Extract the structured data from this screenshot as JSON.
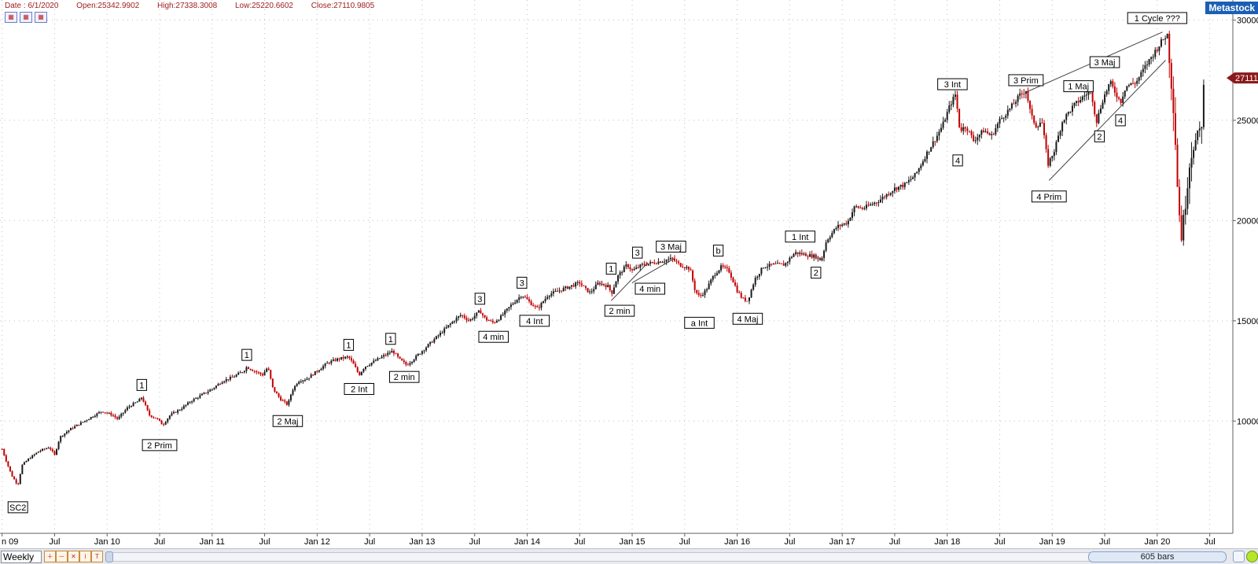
{
  "header": {
    "date": "Date : 6/1/2020",
    "open": "Open:25342.9902",
    "high": "High:27338.3008",
    "low": "Low:25220.6602",
    "close": "Close:27110.9805",
    "brand": "Metastock"
  },
  "toolbar": {
    "period": "Weekly",
    "bars_label": "605 bars",
    "buttons": [
      "zoom-in-icon",
      "zoom-out-icon",
      "cross-icon",
      "info-icon",
      "text-icon"
    ]
  },
  "colors": {
    "up": "#1a1a1a",
    "down": "#c00000",
    "grid": "#c0c0c0",
    "price_flag": "#8b1a1a"
  },
  "chart_data": {
    "type": "candlestick",
    "title": "",
    "xlabel": "",
    "ylabel": "",
    "ylim": [
      4400,
      31000
    ],
    "y_ticks": [
      10000,
      15000,
      20000,
      25000,
      30000
    ],
    "y_tick_labels": [
      "10000",
      "15000",
      "20000",
      "25000",
      "30000"
    ],
    "x_ticks": [
      "n 09",
      "Jul",
      "Jan 10",
      "Jul",
      "Jan 11",
      "Jul",
      "Jan 12",
      "Jul",
      "Jan 13",
      "Jul",
      "Jan 14",
      "Jul",
      "Jan 15",
      "Jul",
      "Jan 16",
      "Jul",
      "Jan 17",
      "Jul",
      "Jan 18",
      "Jul",
      "Jan 19",
      "Jul",
      "Jan 20",
      "Jul"
    ],
    "x_tick_years": [
      2009.0,
      2009.5,
      2010.0,
      2010.5,
      2011.0,
      2011.5,
      2012.0,
      2012.5,
      2013.0,
      2013.5,
      2014.0,
      2014.5,
      2015.0,
      2015.5,
      2016.0,
      2016.5,
      2017.0,
      2017.5,
      2018.0,
      2018.5,
      2019.0,
      2019.5,
      2020.0,
      2020.5
    ],
    "grid": true,
    "last_price_label": "27111",
    "last_price": 27111,
    "series": [
      {
        "values": [
          [
            2009.0,
            8600
          ],
          [
            2009.04,
            8000
          ],
          [
            2009.09,
            7300
          ],
          [
            2009.15,
            6800
          ],
          [
            2009.19,
            7800
          ],
          [
            2009.25,
            8100
          ],
          [
            2009.35,
            8500
          ],
          [
            2009.45,
            8700
          ],
          [
            2009.5,
            8300
          ],
          [
            2009.55,
            9200
          ],
          [
            2009.65,
            9600
          ],
          [
            2009.75,
            9900
          ],
          [
            2009.85,
            10200
          ],
          [
            2009.95,
            10500
          ],
          [
            2010.05,
            10300
          ],
          [
            2010.1,
            10100
          ],
          [
            2010.2,
            10700
          ],
          [
            2010.3,
            11000
          ],
          [
            2010.33,
            11200
          ],
          [
            2010.4,
            10300
          ],
          [
            2010.48,
            10100
          ],
          [
            2010.53,
            9800
          ],
          [
            2010.6,
            10300
          ],
          [
            2010.7,
            10600
          ],
          [
            2010.8,
            11000
          ],
          [
            2010.9,
            11300
          ],
          [
            2011.0,
            11600
          ],
          [
            2011.1,
            12000
          ],
          [
            2011.2,
            12200
          ],
          [
            2011.3,
            12500
          ],
          [
            2011.33,
            12700
          ],
          [
            2011.4,
            12500
          ],
          [
            2011.48,
            12300
          ],
          [
            2011.53,
            12700
          ],
          [
            2011.58,
            11600
          ],
          [
            2011.65,
            11100
          ],
          [
            2011.72,
            10800
          ],
          [
            2011.76,
            11500
          ],
          [
            2011.82,
            12000
          ],
          [
            2011.9,
            12100
          ],
          [
            2012.0,
            12500
          ],
          [
            2012.1,
            12900
          ],
          [
            2012.2,
            13100
          ],
          [
            2012.3,
            13200
          ],
          [
            2012.35,
            12800
          ],
          [
            2012.4,
            12300
          ],
          [
            2012.45,
            12700
          ],
          [
            2012.55,
            13000
          ],
          [
            2012.65,
            13300
          ],
          [
            2012.72,
            13500
          ],
          [
            2012.78,
            13100
          ],
          [
            2012.85,
            12800
          ],
          [
            2012.9,
            13000
          ],
          [
            2013.0,
            13500
          ],
          [
            2013.1,
            14000
          ],
          [
            2013.2,
            14500
          ],
          [
            2013.3,
            15000
          ],
          [
            2013.37,
            15300
          ],
          [
            2013.45,
            15000
          ],
          [
            2013.55,
            15500
          ],
          [
            2013.6,
            15100
          ],
          [
            2013.68,
            14900
          ],
          [
            2013.75,
            15200
          ],
          [
            2013.85,
            15800
          ],
          [
            2013.95,
            16300
          ],
          [
            2014.05,
            15800
          ],
          [
            2014.1,
            15600
          ],
          [
            2014.2,
            16300
          ],
          [
            2014.3,
            16500
          ],
          [
            2014.4,
            16700
          ],
          [
            2014.5,
            16900
          ],
          [
            2014.55,
            16600
          ],
          [
            2014.6,
            16400
          ],
          [
            2014.68,
            16900
          ],
          [
            2014.78,
            16700
          ],
          [
            2014.8,
            16300
          ],
          [
            2014.86,
            17200
          ],
          [
            2014.95,
            17800
          ],
          [
            2015.0,
            17500
          ],
          [
            2015.1,
            17800
          ],
          [
            2015.2,
            17900
          ],
          [
            2015.3,
            18000
          ],
          [
            2015.38,
            18100
          ],
          [
            2015.45,
            17800
          ],
          [
            2015.55,
            17600
          ],
          [
            2015.6,
            16500
          ],
          [
            2015.64,
            16200
          ],
          [
            2015.7,
            16500
          ],
          [
            2015.78,
            17300
          ],
          [
            2015.85,
            17700
          ],
          [
            2015.92,
            17500
          ],
          [
            2016.0,
            16500
          ],
          [
            2016.05,
            16100
          ],
          [
            2016.1,
            16000
          ],
          [
            2016.17,
            17100
          ],
          [
            2016.25,
            17700
          ],
          [
            2016.35,
            17800
          ],
          [
            2016.45,
            17800
          ],
          [
            2016.55,
            18400
          ],
          [
            2016.65,
            18300
          ],
          [
            2016.75,
            18200
          ],
          [
            2016.8,
            18000
          ],
          [
            2016.85,
            19000
          ],
          [
            2016.95,
            19700
          ],
          [
            2017.05,
            19900
          ],
          [
            2017.12,
            20700
          ],
          [
            2017.2,
            20600
          ],
          [
            2017.35,
            21000
          ],
          [
            2017.5,
            21600
          ],
          [
            2017.6,
            21800
          ],
          [
            2017.7,
            22300
          ],
          [
            2017.8,
            23300
          ],
          [
            2017.9,
            24200
          ],
          [
            2017.96,
            24800
          ],
          [
            2018.03,
            25800
          ],
          [
            2018.08,
            26300
          ],
          [
            2018.12,
            24500
          ],
          [
            2018.18,
            24700
          ],
          [
            2018.25,
            24000
          ],
          [
            2018.35,
            24500
          ],
          [
            2018.42,
            24200
          ],
          [
            2018.5,
            25000
          ],
          [
            2018.6,
            25600
          ],
          [
            2018.7,
            26300
          ],
          [
            2018.75,
            26500
          ],
          [
            2018.8,
            25200
          ],
          [
            2018.85,
            24700
          ],
          [
            2018.9,
            25000
          ],
          [
            2018.96,
            22800
          ],
          [
            2019.02,
            23500
          ],
          [
            2019.1,
            25000
          ],
          [
            2019.2,
            25700
          ],
          [
            2019.3,
            26200
          ],
          [
            2019.37,
            26500
          ],
          [
            2019.42,
            24900
          ],
          [
            2019.48,
            26000
          ],
          [
            2019.55,
            26900
          ],
          [
            2019.6,
            26400
          ],
          [
            2019.65,
            25900
          ],
          [
            2019.7,
            26700
          ],
          [
            2019.8,
            26900
          ],
          [
            2019.9,
            27800
          ],
          [
            2020.0,
            28600
          ],
          [
            2020.05,
            29000
          ],
          [
            2020.1,
            29300
          ],
          [
            2020.13,
            27200
          ],
          [
            2020.16,
            25400
          ],
          [
            2020.2,
            21000
          ],
          [
            2020.23,
            19200
          ],
          [
            2020.26,
            20400
          ],
          [
            2020.3,
            22600
          ],
          [
            2020.34,
            23800
          ],
          [
            2020.38,
            24000
          ],
          [
            2020.42,
            24700
          ],
          [
            2020.45,
            27111
          ]
        ]
      }
    ],
    "annotations": [
      {
        "text": "SC2",
        "x": 2009.15,
        "y": 5700
      },
      {
        "text": "1",
        "x": 2010.33,
        "y": 11800
      },
      {
        "text": "2 Prim",
        "x": 2010.5,
        "y": 8800
      },
      {
        "text": "1",
        "x": 2011.33,
        "y": 13300
      },
      {
        "text": "2 Maj",
        "x": 2011.72,
        "y": 10000
      },
      {
        "text": "1",
        "x": 2012.3,
        "y": 13800
      },
      {
        "text": "2 Int",
        "x": 2012.4,
        "y": 11600
      },
      {
        "text": "1",
        "x": 2012.7,
        "y": 14100
      },
      {
        "text": "2 min",
        "x": 2012.83,
        "y": 12200
      },
      {
        "text": "3",
        "x": 2013.55,
        "y": 16100
      },
      {
        "text": "4 min",
        "x": 2013.68,
        "y": 14200
      },
      {
        "text": "3",
        "x": 2013.95,
        "y": 16900
      },
      {
        "text": "4 Int",
        "x": 2014.07,
        "y": 15000
      },
      {
        "text": "1",
        "x": 2014.8,
        "y": 17600
      },
      {
        "text": "3",
        "x": 2015.05,
        "y": 18400
      },
      {
        "text": "4 min",
        "x": 2015.17,
        "y": 16600
      },
      {
        "text": "2 min",
        "x": 2014.88,
        "y": 15500
      },
      {
        "text": "3 Maj",
        "x": 2015.37,
        "y": 18700
      },
      {
        "text": "b",
        "x": 2015.82,
        "y": 18500
      },
      {
        "text": "a Int",
        "x": 2015.64,
        "y": 14900
      },
      {
        "text": "4 Maj",
        "x": 2016.1,
        "y": 15100
      },
      {
        "text": "1 Int",
        "x": 2016.6,
        "y": 19200
      },
      {
        "text": "2",
        "x": 2016.75,
        "y": 17400
      },
      {
        "text": "3 Int",
        "x": 2018.05,
        "y": 26800
      },
      {
        "text": "4",
        "x": 2018.1,
        "y": 23000
      },
      {
        "text": "3 Prim",
        "x": 2018.75,
        "y": 27000
      },
      {
        "text": "4 Prim",
        "x": 2018.97,
        "y": 21200
      },
      {
        "text": "1 Maj",
        "x": 2019.25,
        "y": 26700
      },
      {
        "text": "3 Maj",
        "x": 2019.5,
        "y": 27900
      },
      {
        "text": "2",
        "x": 2019.45,
        "y": 24200
      },
      {
        "text": "4",
        "x": 2019.65,
        "y": 25000
      },
      {
        "text": "1 Cycle ???",
        "x": 2020.0,
        "y": 30100
      }
    ],
    "trendlines": [
      {
        "from": [
          2014.8,
          16000
        ],
        "to": [
          2015.15,
          17900
        ]
      },
      {
        "from": [
          2015.0,
          16900
        ],
        "to": [
          2015.4,
          18100
        ]
      },
      {
        "from": [
          2018.75,
          26400
        ],
        "to": [
          2020.05,
          29400
        ]
      },
      {
        "from": [
          2018.97,
          22000
        ],
        "to": [
          2020.08,
          28000
        ]
      }
    ]
  }
}
